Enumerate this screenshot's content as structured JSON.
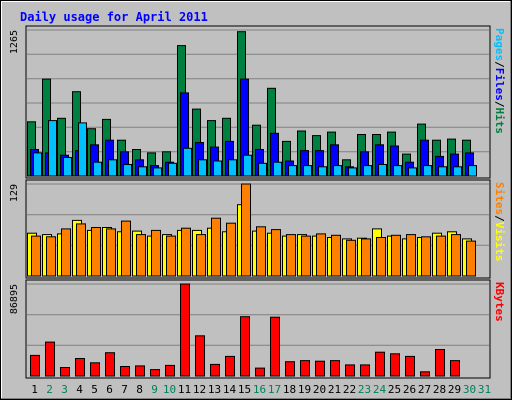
{
  "chart_data": {
    "type": "bar",
    "title": "Daily usage for April 2011",
    "days": [
      "1",
      "2",
      "3",
      "4",
      "5",
      "6",
      "7",
      "8",
      "9",
      "10",
      "11",
      "12",
      "13",
      "14",
      "15",
      "16",
      "17",
      "18",
      "19",
      "20",
      "21",
      "22",
      "23",
      "24",
      "25",
      "26",
      "27",
      "28",
      "29",
      "30",
      "31"
    ],
    "weekend_days": [
      "2",
      "3",
      "9",
      "10",
      "16",
      "17",
      "23",
      "24",
      "30",
      "31"
    ],
    "panels": [
      {
        "name": "hits-files-pages",
        "max_label": "1265",
        "ymax": 1265,
        "side_labels": [
          {
            "text": "Pages",
            "color": "#00c0ff"
          },
          {
            "text": "/",
            "color": "#000000"
          },
          {
            "text": "Files",
            "color": "#0000ff"
          },
          {
            "text": "/",
            "color": "#000000"
          },
          {
            "text": "Hits",
            "color": "#008040"
          }
        ],
        "series": [
          {
            "name": "Hits",
            "color": "#008040",
            "values": [
              470,
              840,
              500,
              730,
              410,
              490,
              310,
              230,
              200,
              210,
              1130,
              580,
              480,
              500,
              1250,
              440,
              760,
              300,
              390,
              350,
              380,
              140,
              360,
              360,
              380,
              190,
              450,
              310,
              320,
              310,
              0
            ]
          },
          {
            "name": "Files",
            "color": "#0000ff",
            "values": [
              230,
              200,
              180,
              220,
              270,
              310,
              210,
              140,
              90,
              120,
              720,
              290,
              250,
              300,
              840,
              230,
              370,
              130,
              220,
              220,
              270,
              80,
              210,
              270,
              260,
              120,
              310,
              170,
              190,
              200,
              0
            ]
          },
          {
            "name": "Pages",
            "color": "#00c0ff",
            "values": [
              200,
              480,
              160,
              460,
              120,
              140,
              100,
              80,
              70,
              110,
              240,
              140,
              130,
              140,
              180,
              110,
              120,
              90,
              90,
              80,
              90,
              70,
              90,
              100,
              90,
              70,
              90,
              80,
              80,
              90,
              0
            ]
          }
        ]
      },
      {
        "name": "visits-sites",
        "max_label": "129",
        "ymax": 129,
        "side_labels": [
          {
            "text": "Sites",
            "color": "#ff8000"
          },
          {
            "text": "/",
            "color": "#000000"
          },
          {
            "text": "Visits",
            "color": "#ffff00"
          }
        ],
        "series": [
          {
            "name": "Visits",
            "color": "#ffff00",
            "values": [
              60,
              58,
              59,
              78,
              64,
              68,
              62,
              63,
              56,
              58,
              64,
              64,
              67,
              62,
              100,
              63,
              60,
              56,
              58,
              56,
              54,
              52,
              53,
              66,
              56,
              52,
              54,
              60,
              62,
              52,
              0
            ]
          },
          {
            "name": "Sites",
            "color": "#ff8000",
            "values": [
              56,
              55,
              66,
              73,
              68,
              66,
              77,
              58,
              64,
              56,
              67,
              58,
              81,
              74,
              129,
              69,
              65,
              58,
              56,
              59,
              57,
              50,
              52,
              54,
              57,
              58,
              55,
              56,
              58,
              49,
              0
            ]
          }
        ]
      },
      {
        "name": "kbytes",
        "max_label": "86895",
        "ymax": 86895,
        "side_labels": [
          {
            "text": "KBytes",
            "color": "#ff0000"
          }
        ],
        "series": [
          {
            "name": "KBytes",
            "color": "#ff0000",
            "values": [
              19500,
              32000,
              8000,
              16500,
              12500,
              22000,
              9000,
              9500,
              6000,
              10000,
              86895,
              38000,
              11000,
              18500,
              56000,
              7500,
              55500,
              13500,
              14500,
              14000,
              14500,
              10500,
              10500,
              22500,
              21000,
              18500,
              4000,
              25000,
              14500,
              0,
              0
            ]
          }
        ]
      }
    ]
  }
}
